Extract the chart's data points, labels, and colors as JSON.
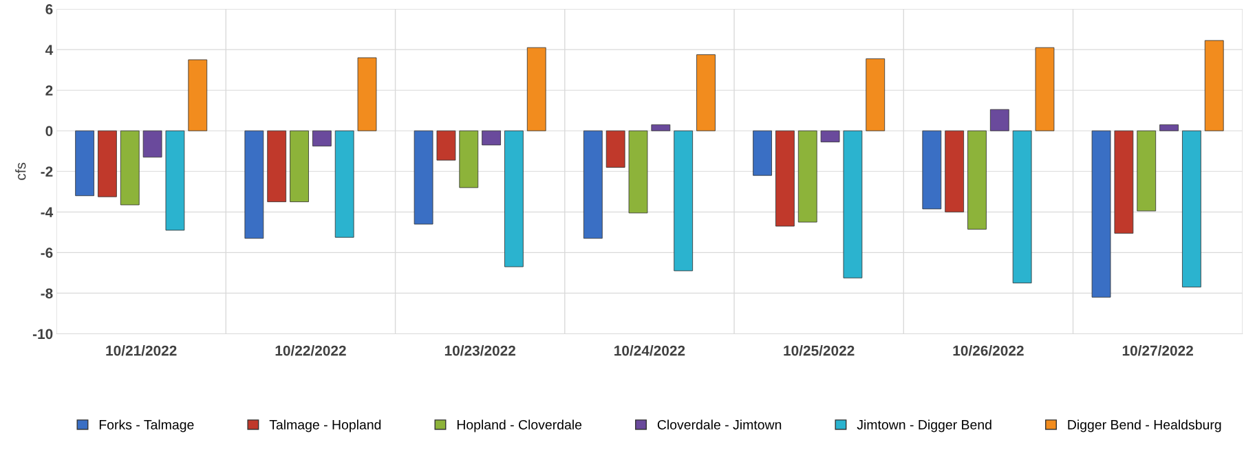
{
  "chart_data": {
    "type": "bar",
    "ylabel": "cfs",
    "categories": [
      "10/21/2022",
      "10/22/2022",
      "10/23/2022",
      "10/24/2022",
      "10/25/2022",
      "10/26/2022",
      "10/27/2022"
    ],
    "series": [
      {
        "name": "Forks - Talmage",
        "color": "#3a6fc4",
        "values": [
          -3.2,
          -5.3,
          -4.6,
          -5.3,
          -2.2,
          -3.85,
          -8.2
        ]
      },
      {
        "name": "Talmage - Hopland",
        "color": "#c0392b",
        "values": [
          -3.25,
          -3.5,
          -1.45,
          -1.8,
          -4.7,
          -4.0,
          -5.05
        ]
      },
      {
        "name": "Hopland - Cloverdale",
        "color": "#8db33a",
        "values": [
          -3.65,
          -3.5,
          -2.8,
          -4.05,
          -4.5,
          -4.85,
          -3.95
        ]
      },
      {
        "name": "Cloverdale - Jimtown",
        "color": "#6a4a9c",
        "values": [
          -1.3,
          -0.75,
          -0.7,
          0.3,
          -0.55,
          1.05,
          0.3
        ]
      },
      {
        "name": "Jimtown - Digger Bend",
        "color": "#2bb3cf",
        "values": [
          -4.9,
          -5.25,
          -6.7,
          -6.9,
          -7.25,
          -7.5,
          -7.7
        ]
      },
      {
        "name": "Digger Bend - Healdsburg",
        "color": "#f28c1e",
        "values": [
          3.5,
          3.6,
          4.1,
          3.75,
          3.55,
          4.1,
          4.45
        ]
      }
    ],
    "ylim": [
      -10,
      6
    ],
    "yticks": [
      -10,
      -8,
      -6,
      -4,
      -2,
      0,
      2,
      4,
      6
    ],
    "grid": true,
    "legend": "bottom"
  }
}
